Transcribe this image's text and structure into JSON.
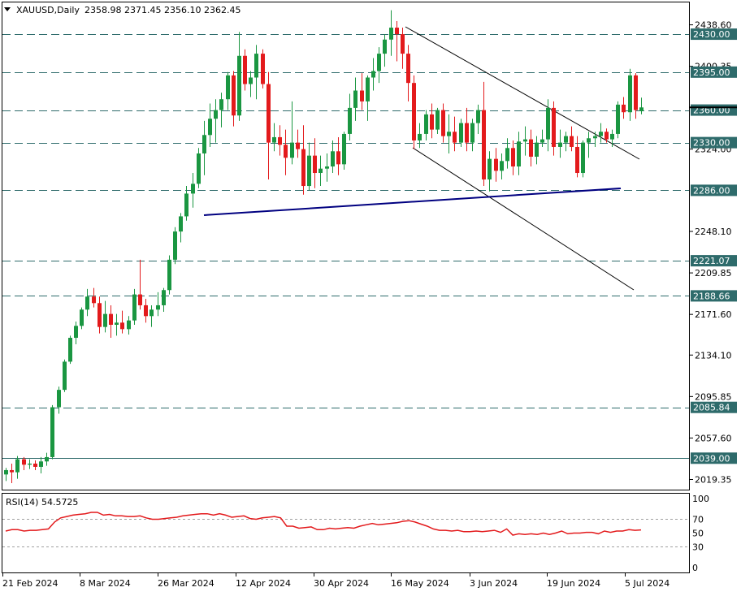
{
  "header": {
    "symbol": "XAUUSD,Daily",
    "ohlc": "2358.98 2371.45 2356.10 2362.45"
  },
  "rsi": {
    "label": "RSI(14) 54.5725",
    "levels": [
      "100",
      "70",
      "50",
      "30",
      "0"
    ]
  },
  "colors": {
    "bull": "#1a9641",
    "bear": "#e31a1c",
    "level_line": "#2e6b6b",
    "support_line": "#000080",
    "rsi_line": "#e31a1c",
    "label_bg": "#2e6b6b",
    "label_text": "#ffffff"
  },
  "chart_data": [
    {
      "type": "candlestick",
      "title": "XAUUSD,Daily",
      "ylim": [
        2010,
        2460
      ],
      "y_ticks": [
        "2438.60",
        "2400.35",
        "2324.00",
        "2248.10",
        "2209.85",
        "2171.60",
        "2134.10",
        "2095.85",
        "2057.60",
        "2019.35"
      ],
      "x_ticks": [
        "21 Feb 2024",
        "8 Mar 2024",
        "26 Mar 2024",
        "12 Apr 2024",
        "30 Apr 2024",
        "16 May 2024",
        "3 Jun 2024",
        "19 Jun 2024",
        "5 Jul 2024"
      ],
      "levels": [
        "2430.00",
        "2395.00",
        "2360.00",
        "2330.00",
        "2286.00",
        "2221.07",
        "2188.66",
        "2085.84",
        "2039.00"
      ],
      "candles": [
        [
          2024,
          2030,
          2018,
          2028
        ],
        [
          2028,
          2034,
          2016,
          2026
        ],
        [
          2026,
          2041,
          2020,
          2038
        ],
        [
          2038,
          2040,
          2028,
          2033
        ],
        [
          2033,
          2038,
          2029,
          2034
        ],
        [
          2034,
          2037,
          2028,
          2031
        ],
        [
          2031,
          2040,
          2025,
          2036
        ],
        [
          2036,
          2044,
          2032,
          2040
        ],
        [
          2040,
          2088,
          2038,
          2086
        ],
        [
          2086,
          2105,
          2080,
          2102
        ],
        [
          2102,
          2130,
          2100,
          2128
        ],
        [
          2128,
          2152,
          2126,
          2150
        ],
        [
          2150,
          2165,
          2144,
          2161
        ],
        [
          2161,
          2178,
          2158,
          2176
        ],
        [
          2176,
          2195,
          2170,
          2188
        ],
        [
          2188,
          2196,
          2178,
          2182
        ],
        [
          2182,
          2188,
          2154,
          2160
        ],
        [
          2160,
          2184,
          2155,
          2172
        ],
        [
          2172,
          2180,
          2150,
          2162
        ],
        [
          2162,
          2172,
          2152,
          2164
        ],
        [
          2164,
          2175,
          2154,
          2158
        ],
        [
          2158,
          2170,
          2153,
          2166
        ],
        [
          2166,
          2195,
          2162,
          2190
        ],
        [
          2190,
          2222,
          2176,
          2180
        ],
        [
          2180,
          2186,
          2164,
          2170
        ],
        [
          2170,
          2180,
          2160,
          2176
        ],
        [
          2176,
          2192,
          2170,
          2180
        ],
        [
          2180,
          2196,
          2174,
          2194
        ],
        [
          2194,
          2226,
          2190,
          2222
        ],
        [
          2222,
          2252,
          2218,
          2248
        ],
        [
          2248,
          2265,
          2238,
          2262
        ],
        [
          2262,
          2290,
          2258,
          2283
        ],
        [
          2283,
          2302,
          2270,
          2292
        ],
        [
          2292,
          2325,
          2288,
          2320
        ],
        [
          2320,
          2350,
          2300,
          2337
        ],
        [
          2337,
          2366,
          2326,
          2352
        ],
        [
          2352,
          2370,
          2330,
          2360
        ],
        [
          2360,
          2376,
          2344,
          2370
        ],
        [
          2370,
          2395,
          2360,
          2392
        ],
        [
          2392,
          2396,
          2345,
          2355
        ],
        [
          2355,
          2432,
          2350,
          2410
        ],
        [
          2410,
          2416,
          2378,
          2384
        ],
        [
          2384,
          2396,
          2372,
          2390
        ],
        [
          2390,
          2420,
          2370,
          2412
        ],
        [
          2412,
          2416,
          2380,
          2384
        ],
        [
          2384,
          2395,
          2296,
          2330
        ],
        [
          2330,
          2348,
          2322,
          2335
        ],
        [
          2335,
          2346,
          2318,
          2328
        ],
        [
          2328,
          2342,
          2300,
          2316
        ],
        [
          2316,
          2368,
          2310,
          2330
        ],
        [
          2330,
          2342,
          2316,
          2324
        ],
        [
          2324,
          2346,
          2282,
          2290
        ],
        [
          2290,
          2330,
          2286,
          2318
        ],
        [
          2318,
          2334,
          2288,
          2302
        ],
        [
          2302,
          2318,
          2290,
          2306
        ],
        [
          2306,
          2320,
          2294,
          2308
        ],
        [
          2308,
          2332,
          2302,
          2322
        ],
        [
          2322,
          2335,
          2300,
          2310
        ],
        [
          2310,
          2340,
          2305,
          2338
        ],
        [
          2338,
          2375,
          2332,
          2362
        ],
        [
          2362,
          2390,
          2350,
          2378
        ],
        [
          2378,
          2394,
          2360,
          2368
        ],
        [
          2368,
          2392,
          2350,
          2390
        ],
        [
          2390,
          2408,
          2378,
          2396
        ],
        [
          2396,
          2418,
          2385,
          2412
        ],
        [
          2412,
          2430,
          2400,
          2425
        ],
        [
          2425,
          2452,
          2410,
          2436
        ],
        [
          2436,
          2442,
          2405,
          2430
        ],
        [
          2430,
          2436,
          2398,
          2412
        ],
        [
          2412,
          2420,
          2368,
          2385
        ],
        [
          2385,
          2392,
          2324,
          2332
        ],
        [
          2332,
          2348,
          2325,
          2338
        ],
        [
          2338,
          2360,
          2332,
          2356
        ],
        [
          2356,
          2366,
          2334,
          2342
        ],
        [
          2342,
          2362,
          2338,
          2360
        ],
        [
          2360,
          2366,
          2330,
          2336
        ],
        [
          2336,
          2356,
          2320,
          2340
        ],
        [
          2340,
          2354,
          2322,
          2330
        ],
        [
          2330,
          2352,
          2326,
          2348
        ],
        [
          2348,
          2362,
          2322,
          2330
        ],
        [
          2330,
          2352,
          2322,
          2348
        ],
        [
          2348,
          2365,
          2338,
          2360
        ],
        [
          2360,
          2386,
          2290,
          2296
        ],
        [
          2296,
          2322,
          2285,
          2315
        ],
        [
          2315,
          2325,
          2294,
          2304
        ],
        [
          2304,
          2320,
          2296,
          2313
        ],
        [
          2313,
          2334,
          2306,
          2325
        ],
        [
          2325,
          2332,
          2300,
          2308
        ],
        [
          2308,
          2340,
          2300,
          2331
        ],
        [
          2331,
          2345,
          2318,
          2333
        ],
        [
          2333,
          2342,
          2308,
          2317
        ],
        [
          2317,
          2336,
          2310,
          2330
        ],
        [
          2330,
          2342,
          2326,
          2333
        ],
        [
          2333,
          2370,
          2322,
          2362
        ],
        [
          2362,
          2368,
          2318,
          2326
        ],
        [
          2326,
          2342,
          2316,
          2330
        ],
        [
          2330,
          2340,
          2322,
          2336
        ],
        [
          2336,
          2345,
          2322,
          2326
        ],
        [
          2326,
          2336,
          2298,
          2302
        ],
        [
          2302,
          2332,
          2298,
          2330
        ],
        [
          2330,
          2340,
          2316,
          2334
        ],
        [
          2334,
          2340,
          2326,
          2336
        ],
        [
          2336,
          2348,
          2330,
          2340
        ],
        [
          2340,
          2343,
          2330,
          2333
        ],
        [
          2333,
          2342,
          2326,
          2338
        ],
        [
          2338,
          2368,
          2334,
          2365
        ],
        [
          2365,
          2372,
          2352,
          2358
        ],
        [
          2358,
          2398,
          2350,
          2392
        ],
        [
          2392,
          2394,
          2352,
          2360
        ],
        [
          2358.98,
          2371.45,
          2356.1,
          2362.45
        ]
      ]
    },
    {
      "type": "line",
      "title": "RSI(14) 54.5725",
      "ylim": [
        0,
        100
      ],
      "y_ticks": [
        "100",
        "70",
        "50",
        "30",
        "0"
      ],
      "values": [
        53,
        55,
        55,
        53,
        54,
        54,
        55,
        56,
        66,
        72,
        74,
        76,
        77,
        78,
        80,
        80,
        76,
        77,
        75,
        75,
        74,
        74,
        75,
        72,
        70,
        70,
        71,
        72,
        73,
        75,
        76,
        77,
        78,
        78,
        76,
        78,
        76,
        73,
        74,
        75,
        71,
        70,
        72,
        73,
        74,
        72,
        60,
        60,
        57,
        58,
        59,
        55,
        55,
        57,
        56,
        57,
        58,
        57,
        60,
        62,
        64,
        62,
        63,
        64,
        65,
        67,
        68,
        66,
        63,
        60,
        56,
        54,
        54,
        53,
        54,
        52,
        52,
        53,
        52,
        53,
        54,
        51,
        56,
        47,
        49,
        48,
        49,
        48,
        50,
        48,
        50,
        53,
        49,
        50,
        50,
        51,
        51,
        49,
        53,
        51,
        53,
        53,
        55,
        54,
        54.57
      ]
    }
  ]
}
